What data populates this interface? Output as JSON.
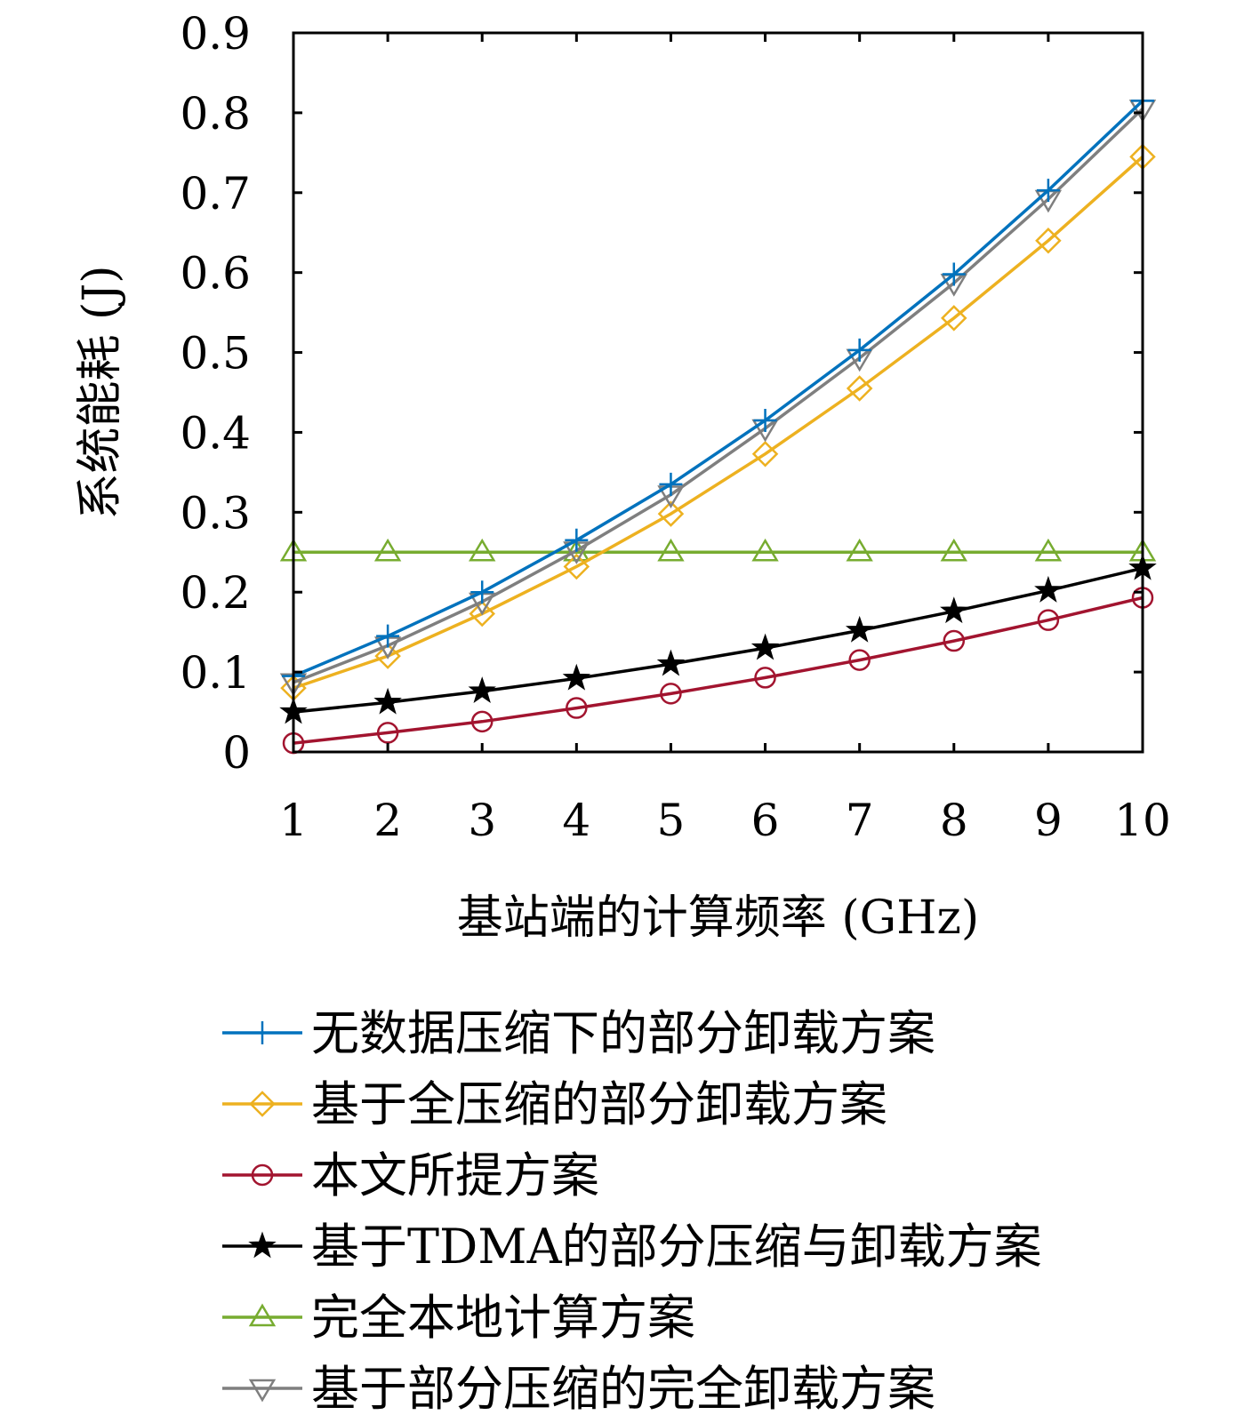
{
  "chart_data": {
    "type": "line",
    "title": "",
    "xlabel": "基站端的计算频率 (GHz)",
    "ylabel": "系统能耗 (J)",
    "xlim": [
      1,
      10
    ],
    "ylim": [
      0,
      0.9
    ],
    "x": [
      1,
      2,
      3,
      4,
      5,
      6,
      7,
      8,
      9,
      10
    ],
    "x_ticks": [
      "1",
      "2",
      "3",
      "4",
      "5",
      "6",
      "7",
      "8",
      "9",
      "10"
    ],
    "y_ticks": [
      "0",
      "0.1",
      "0.2",
      "0.3",
      "0.4",
      "0.5",
      "0.6",
      "0.7",
      "0.8",
      "0.9"
    ],
    "y_tick_values": [
      0,
      0.1,
      0.2,
      0.3,
      0.4,
      0.5,
      0.6,
      0.7,
      0.8,
      0.9
    ],
    "grid": false,
    "legend_position": "below",
    "series": [
      {
        "name": "无数据压缩下的部分卸载方案",
        "color": "#0072BD",
        "marker": "plus",
        "values": [
          0.095,
          0.145,
          0.2,
          0.265,
          0.335,
          0.415,
          0.503,
          0.598,
          0.703,
          0.815
        ]
      },
      {
        "name": "基于全压缩的部分卸载方案",
        "color": "#EDB120",
        "marker": "diamond",
        "values": [
          0.08,
          0.12,
          0.173,
          0.232,
          0.298,
          0.373,
          0.455,
          0.543,
          0.64,
          0.745
        ]
      },
      {
        "name": "本文所提方案",
        "color": "#A2142F",
        "marker": "circle",
        "values": [
          0.011,
          0.024,
          0.038,
          0.055,
          0.073,
          0.093,
          0.115,
          0.139,
          0.165,
          0.193
        ]
      },
      {
        "name": "基于TDMA的部分压缩与卸载方案",
        "color": "#000000",
        "marker": "star",
        "values": [
          0.05,
          0.062,
          0.076,
          0.092,
          0.11,
          0.13,
          0.152,
          0.176,
          0.202,
          0.23
        ]
      },
      {
        "name": "完全本地计算方案",
        "color": "#77AC30",
        "marker": "triangle-up",
        "values": [
          0.25,
          0.25,
          0.25,
          0.25,
          0.25,
          0.25,
          0.25,
          0.25,
          0.25,
          0.25
        ]
      },
      {
        "name": "基于部分压缩的完全卸载方案",
        "color": "#7F7F7F",
        "marker": "triangle-down",
        "values": [
          0.087,
          0.133,
          0.188,
          0.252,
          0.322,
          0.405,
          0.493,
          0.587,
          0.692,
          0.805
        ]
      }
    ]
  }
}
